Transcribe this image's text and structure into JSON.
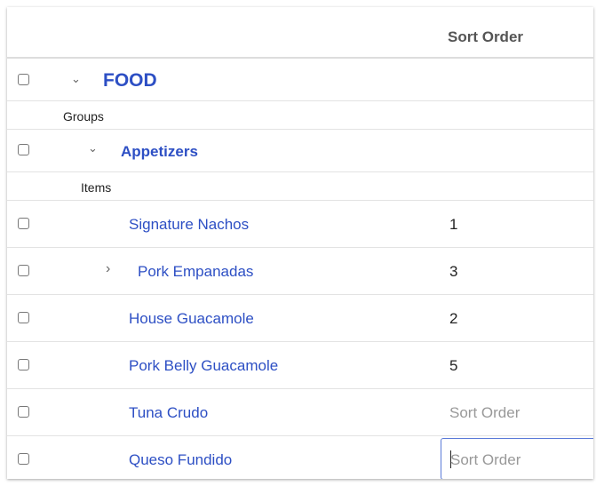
{
  "header": {
    "sort_order_column": "Sort Order"
  },
  "category": {
    "name": "FOOD",
    "expanded": true,
    "sublabel": "Groups"
  },
  "group": {
    "name": "Appetizers",
    "expanded": true,
    "sublabel": "Items"
  },
  "items": [
    {
      "name": "Signature Nachos",
      "sort_order": "1"
    },
    {
      "name": "Pork Empanadas",
      "sort_order": "3",
      "expandable": true
    },
    {
      "name": "House Guacamole",
      "sort_order": "2"
    },
    {
      "name": "Pork Belly Guacamole",
      "sort_order": "5"
    },
    {
      "name": "Tuna Crudo",
      "sort_order": "",
      "placeholder": "Sort Order"
    },
    {
      "name": "Queso Fundido",
      "sort_order": "",
      "placeholder": "Sort Order",
      "focused": true
    }
  ],
  "colors": {
    "link": "#2d4fc4",
    "focus": "#5a7ad8"
  }
}
